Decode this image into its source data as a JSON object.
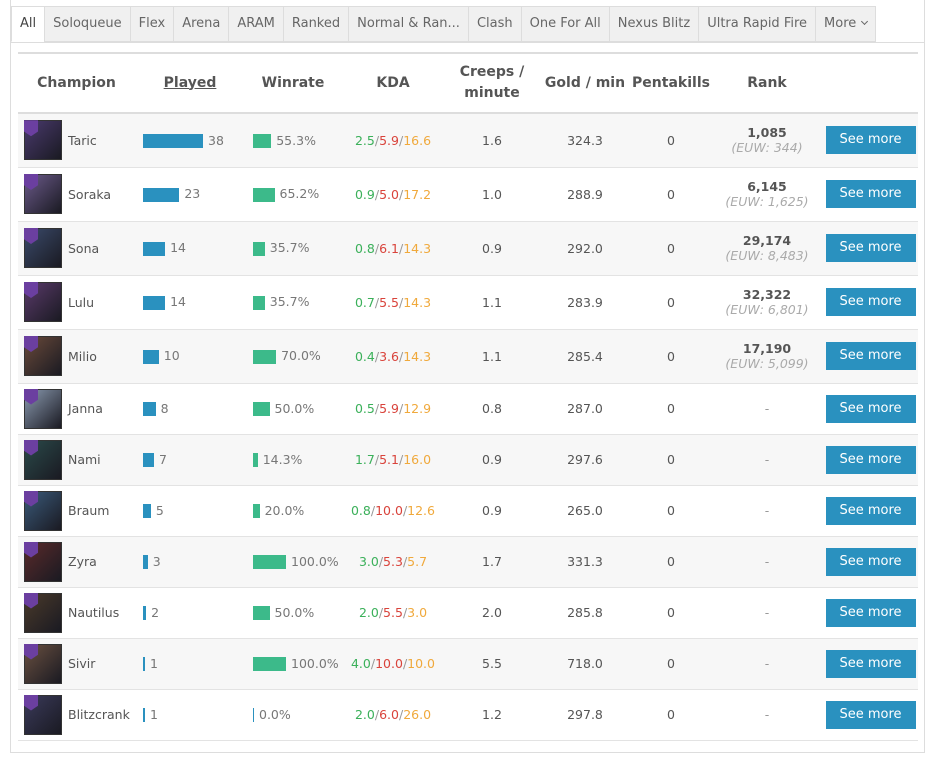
{
  "tabs": [
    "All",
    "Soloqueue",
    "Flex",
    "Arena",
    "ARAM",
    "Ranked",
    "Normal & Ran...",
    "Clash",
    "One For All",
    "Nexus Blitz",
    "Ultra Rapid Fire",
    "More"
  ],
  "table": {
    "headers": [
      "Champion",
      "Played",
      "Winrate",
      "KDA",
      "Creeps / minute",
      "Gold / min",
      "Pentakills",
      "Rank"
    ],
    "kda_separator": "/",
    "see_more": "See more",
    "rows": [
      {
        "champion": "Taric",
        "played": 38,
        "winrate": {
          "value": 55.3,
          "label": "55.3%"
        },
        "kda": [
          "2.5",
          "5.9",
          "16.6"
        ],
        "creeps": "1.6",
        "gold": "324.3",
        "pentakills": 0,
        "rank": "1,085",
        "region_rank": "(EUW: 344)"
      },
      {
        "champion": "Soraka",
        "played": 23,
        "winrate": {
          "value": 65.2,
          "label": "65.2%"
        },
        "kda": [
          "0.9",
          "5.0",
          "17.2"
        ],
        "creeps": "1.0",
        "gold": "288.9",
        "pentakills": 0,
        "rank": "6,145",
        "region_rank": "(EUW: 1,625)"
      },
      {
        "champion": "Sona",
        "played": 14,
        "winrate": {
          "value": 35.7,
          "label": "35.7%"
        },
        "kda": [
          "0.8",
          "6.1",
          "14.3"
        ],
        "creeps": "0.9",
        "gold": "292.0",
        "pentakills": 0,
        "rank": "29,174",
        "region_rank": "(EUW: 8,483)"
      },
      {
        "champion": "Lulu",
        "played": 14,
        "winrate": {
          "value": 35.7,
          "label": "35.7%"
        },
        "kda": [
          "0.7",
          "5.5",
          "14.3"
        ],
        "creeps": "1.1",
        "gold": "283.9",
        "pentakills": 0,
        "rank": "32,322",
        "region_rank": "(EUW: 6,801)"
      },
      {
        "champion": "Milio",
        "played": 10,
        "winrate": {
          "value": 70.0,
          "label": "70.0%"
        },
        "kda": [
          "0.4",
          "3.6",
          "14.3"
        ],
        "creeps": "1.1",
        "gold": "285.4",
        "pentakills": 0,
        "rank": "17,190",
        "region_rank": "(EUW: 5,099)"
      },
      {
        "champion": "Janna",
        "played": 8,
        "winrate": {
          "value": 50.0,
          "label": "50.0%"
        },
        "kda": [
          "0.5",
          "5.9",
          "12.9"
        ],
        "creeps": "0.8",
        "gold": "287.0",
        "pentakills": 0,
        "rank": "-"
      },
      {
        "champion": "Nami",
        "played": 7,
        "winrate": {
          "value": 14.3,
          "label": "14.3%"
        },
        "kda": [
          "1.7",
          "5.1",
          "16.0"
        ],
        "creeps": "0.9",
        "gold": "297.6",
        "pentakills": 0,
        "rank": "-"
      },
      {
        "champion": "Braum",
        "played": 5,
        "winrate": {
          "value": 20.0,
          "label": "20.0%"
        },
        "kda": [
          "0.8",
          "10.0",
          "12.6"
        ],
        "creeps": "0.9",
        "gold": "265.0",
        "pentakills": 0,
        "rank": "-"
      },
      {
        "champion": "Zyra",
        "played": 3,
        "winrate": {
          "value": 100.0,
          "label": "100.0%"
        },
        "kda": [
          "3.0",
          "5.3",
          "5.7"
        ],
        "creeps": "1.7",
        "gold": "331.3",
        "pentakills": 0,
        "rank": "-"
      },
      {
        "champion": "Nautilus",
        "played": 2,
        "winrate": {
          "value": 50.0,
          "label": "50.0%"
        },
        "kda": [
          "2.0",
          "5.5",
          "3.0"
        ],
        "creeps": "2.0",
        "gold": "285.8",
        "pentakills": 0,
        "rank": "-"
      },
      {
        "champion": "Sivir",
        "played": 1,
        "winrate": {
          "value": 100.0,
          "label": "100.0%"
        },
        "kda": [
          "4.0",
          "10.0",
          "10.0"
        ],
        "creeps": "5.5",
        "gold": "718.0",
        "pentakills": 0,
        "rank": "-"
      },
      {
        "champion": "Blitzcrank",
        "played": 1,
        "winrate": {
          "value": 0.0,
          "label": "0.0%"
        },
        "kda": [
          "2.0",
          "6.0",
          "26.0"
        ],
        "creeps": "1.2",
        "gold": "297.8",
        "pentakills": 0,
        "rank": "-"
      }
    ]
  }
}
